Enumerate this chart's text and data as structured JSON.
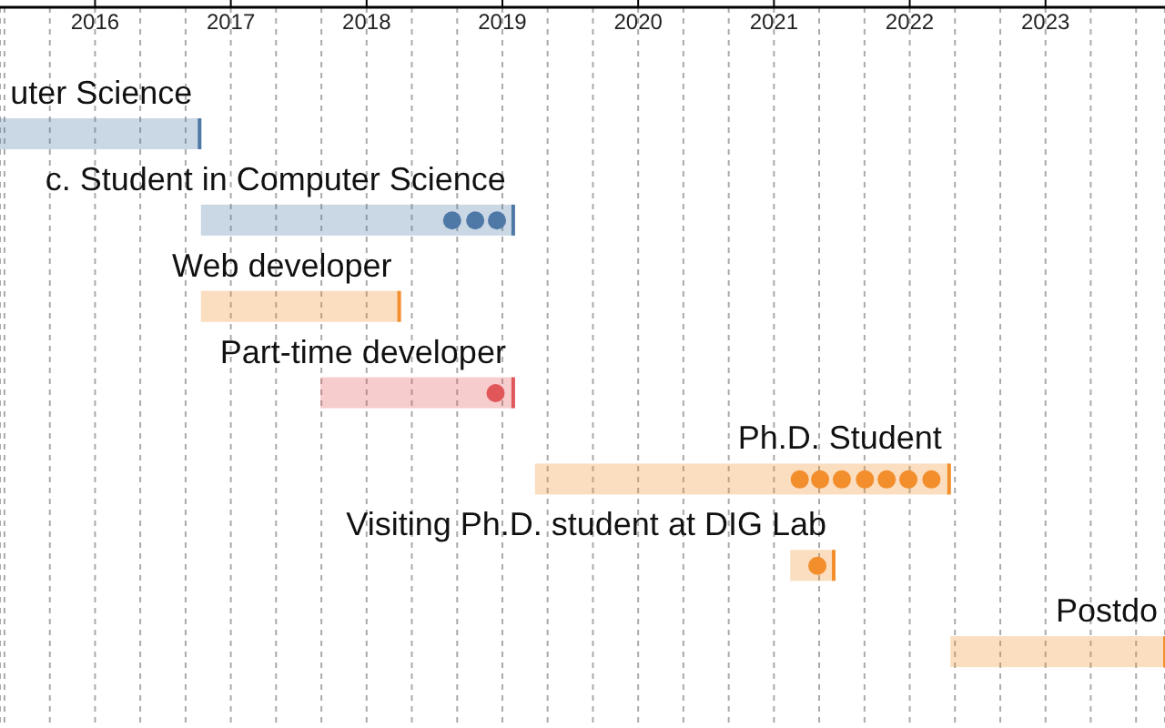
{
  "chart_data": {
    "type": "bar",
    "orientation": "horizontal",
    "categories": [
      "uter Science",
      "c. Student in Computer Science",
      "Web developer",
      "Part-time developer",
      "Ph.D. Student",
      "Visiting Ph.D. student at DIG Lab",
      "Postdo"
    ],
    "xlim": [
      2015.3,
      2023.88
    ],
    "xticks": [
      {
        "value": 2015.333,
        "label": null
      },
      {
        "value": 2015.667,
        "label": null
      },
      2016,
      {
        "value": 2016.333,
        "label": null
      },
      {
        "value": 2016.667,
        "label": null
      },
      2017,
      {
        "value": 2017.333,
        "label": null
      },
      {
        "value": 2017.667,
        "label": null
      },
      2018,
      {
        "value": 2018.333,
        "label": null
      },
      {
        "value": 2018.667,
        "label": null
      },
      2019,
      {
        "value": 2019.333,
        "label": null
      },
      {
        "value": 2019.667,
        "label": null
      },
      2020,
      {
        "value": 2020.333,
        "label": null
      },
      {
        "value": 2020.667,
        "label": null
      },
      2021,
      {
        "value": 2021.333,
        "label": null
      },
      {
        "value": 2021.667,
        "label": null
      },
      2022,
      {
        "value": 2022.333,
        "label": null
      },
      {
        "value": 2022.667,
        "label": null
      },
      2023,
      {
        "value": 2023.333,
        "label": null
      },
      {
        "value": 2023.667,
        "label": null
      }
    ],
    "grid": "x",
    "series": [
      {
        "colors": [
          "#4e79a7",
          "#4e79a7",
          "#f28e2b",
          "#e15759",
          "#f28e2b",
          "#f28e2b",
          "#f28e2b"
        ],
        "base": [
          2015.3,
          2016.78,
          2016.78,
          2017.66,
          2019.24,
          2021.12,
          2022.3
        ],
        "values": [
          1.47,
          2.3,
          1.46,
          1.42,
          3.05,
          0.32,
          1.58
        ]
      },
      {
        "type": "scatter",
        "color": "#4e79a7",
        "x": [
          "c. Student in Computer Science",
          "c. Student in Computer Science",
          "c. Student in Computer Science"
        ],
        "values": [
          2018.63,
          2018.8,
          2018.96
        ]
      },
      {
        "type": "scatter",
        "color": "#e15759",
        "x": [
          "Part-time developer"
        ],
        "values": [
          2018.95
        ]
      },
      {
        "type": "scatter",
        "color": "#f28e2b",
        "x": [
          "Ph.D. Student",
          "Ph.D. Student",
          "Ph.D. Student",
          "Ph.D. Student",
          "Ph.D. Student",
          "Ph.D. Student",
          "Ph.D. Student",
          "Visiting Ph.D. student at DIG Lab"
        ],
        "values": [
          2021.19,
          2021.34,
          2021.5,
          2021.67,
          2021.83,
          2021.99,
          2022.16,
          2021.32
        ]
      }
    ]
  }
}
